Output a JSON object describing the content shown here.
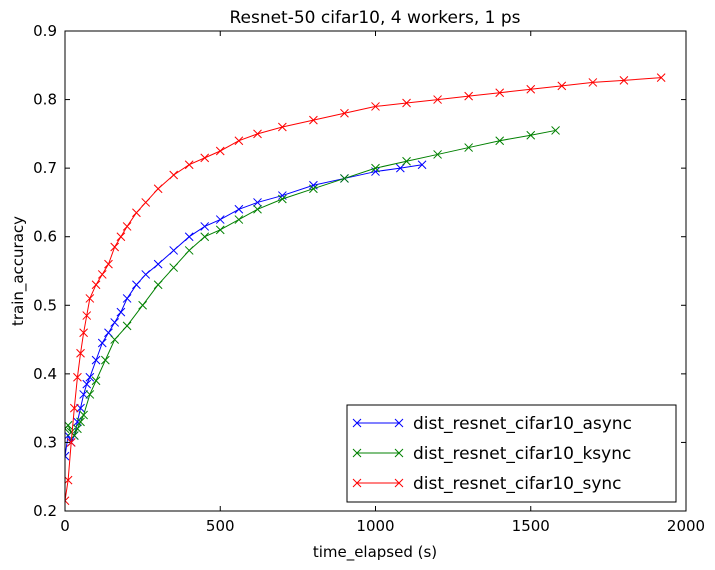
{
  "chart_data": {
    "type": "line",
    "title": "Resnet-50 cifar10, 4 workers, 1 ps",
    "xlabel": "time_elapsed (s)",
    "ylabel": "train_accuracy",
    "xlim": [
      0,
      2000
    ],
    "ylim": [
      0.2,
      0.9
    ],
    "xticks": [
      0,
      500,
      1000,
      1500,
      2000
    ],
    "yticks": [
      0.2,
      0.3,
      0.4,
      0.5,
      0.6,
      0.7,
      0.8,
      0.9
    ],
    "grid": false,
    "legend": "lower-right",
    "marker": "x",
    "series": [
      {
        "name": "dist_resnet_cifar10_async",
        "color": "#0000ff",
        "x": [
          0,
          10,
          20,
          30,
          40,
          50,
          60,
          70,
          80,
          100,
          120,
          140,
          160,
          180,
          200,
          230,
          260,
          300,
          350,
          400,
          450,
          500,
          560,
          620,
          700,
          800,
          900,
          1000,
          1080,
          1150
        ],
        "y": [
          0.28,
          0.31,
          0.3,
          0.31,
          0.33,
          0.35,
          0.37,
          0.385,
          0.395,
          0.42,
          0.445,
          0.46,
          0.475,
          0.49,
          0.51,
          0.53,
          0.545,
          0.56,
          0.58,
          0.6,
          0.615,
          0.625,
          0.64,
          0.65,
          0.66,
          0.675,
          0.685,
          0.695,
          0.7,
          0.705
        ]
      },
      {
        "name": "dist_resnet_cifar10_ksync",
        "color": "#008000",
        "x": [
          0,
          10,
          20,
          30,
          40,
          50,
          60,
          80,
          100,
          130,
          160,
          200,
          250,
          300,
          350,
          400,
          450,
          500,
          560,
          620,
          700,
          800,
          900,
          1000,
          1100,
          1200,
          1300,
          1400,
          1500,
          1580
        ],
        "y": [
          0.32,
          0.325,
          0.315,
          0.31,
          0.32,
          0.33,
          0.34,
          0.37,
          0.39,
          0.42,
          0.45,
          0.47,
          0.5,
          0.53,
          0.555,
          0.58,
          0.6,
          0.61,
          0.625,
          0.64,
          0.655,
          0.67,
          0.685,
          0.7,
          0.71,
          0.72,
          0.73,
          0.74,
          0.748,
          0.755
        ]
      },
      {
        "name": "dist_resnet_cifar10_sync",
        "color": "#ff0000",
        "x": [
          0,
          10,
          20,
          30,
          40,
          50,
          60,
          70,
          80,
          100,
          120,
          140,
          160,
          180,
          200,
          230,
          260,
          300,
          350,
          400,
          450,
          500,
          560,
          620,
          700,
          800,
          900,
          1000,
          1100,
          1200,
          1300,
          1400,
          1500,
          1600,
          1700,
          1800,
          1920
        ],
        "y": [
          0.215,
          0.245,
          0.3,
          0.35,
          0.395,
          0.43,
          0.46,
          0.485,
          0.51,
          0.53,
          0.545,
          0.56,
          0.585,
          0.6,
          0.615,
          0.635,
          0.65,
          0.67,
          0.69,
          0.705,
          0.715,
          0.725,
          0.74,
          0.75,
          0.76,
          0.77,
          0.78,
          0.79,
          0.795,
          0.8,
          0.805,
          0.81,
          0.815,
          0.82,
          0.825,
          0.828,
          0.832
        ]
      }
    ]
  }
}
